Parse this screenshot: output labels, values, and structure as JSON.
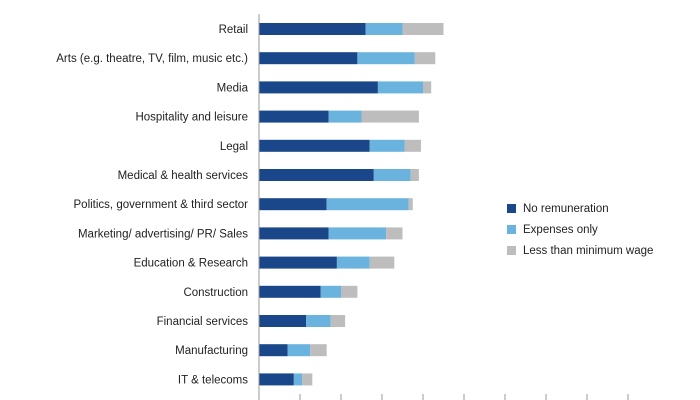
{
  "chart_data": {
    "type": "bar",
    "orientation": "horizontal",
    "stacked": true,
    "categories": [
      "Retail",
      "Arts (e.g. theatre, TV, film, music etc.)",
      "Media",
      "Hospitality and leisure",
      "Legal",
      "Medical & health services",
      "Politics, government & third sector",
      "Marketing/ advertising/ PR/ Sales",
      "Education & Research",
      "Construction",
      "Financial services",
      "Manufacturing",
      "IT & telecoms"
    ],
    "series": [
      {
        "name": "No remuneration",
        "color": "#1a4789",
        "values": [
          26,
          24,
          29,
          17,
          27,
          28,
          16.5,
          17,
          19,
          15,
          11.5,
          7,
          8.5
        ]
      },
      {
        "name": "Expenses only",
        "color": "#6ab3de",
        "values": [
          9,
          14,
          11,
          8,
          8.5,
          9,
          20,
          14,
          8,
          5,
          6,
          5.5,
          2
        ]
      },
      {
        "name": "Less than minimum wage",
        "color": "#bdbdbd",
        "values": [
          10,
          5,
          2,
          14,
          4,
          2,
          1,
          4,
          6,
          4,
          3.5,
          4,
          2.5
        ]
      }
    ],
    "xlim": [
      0,
      90
    ],
    "title": "",
    "xlabel": "",
    "ylabel": "",
    "grid": false,
    "legend_position": "right"
  }
}
